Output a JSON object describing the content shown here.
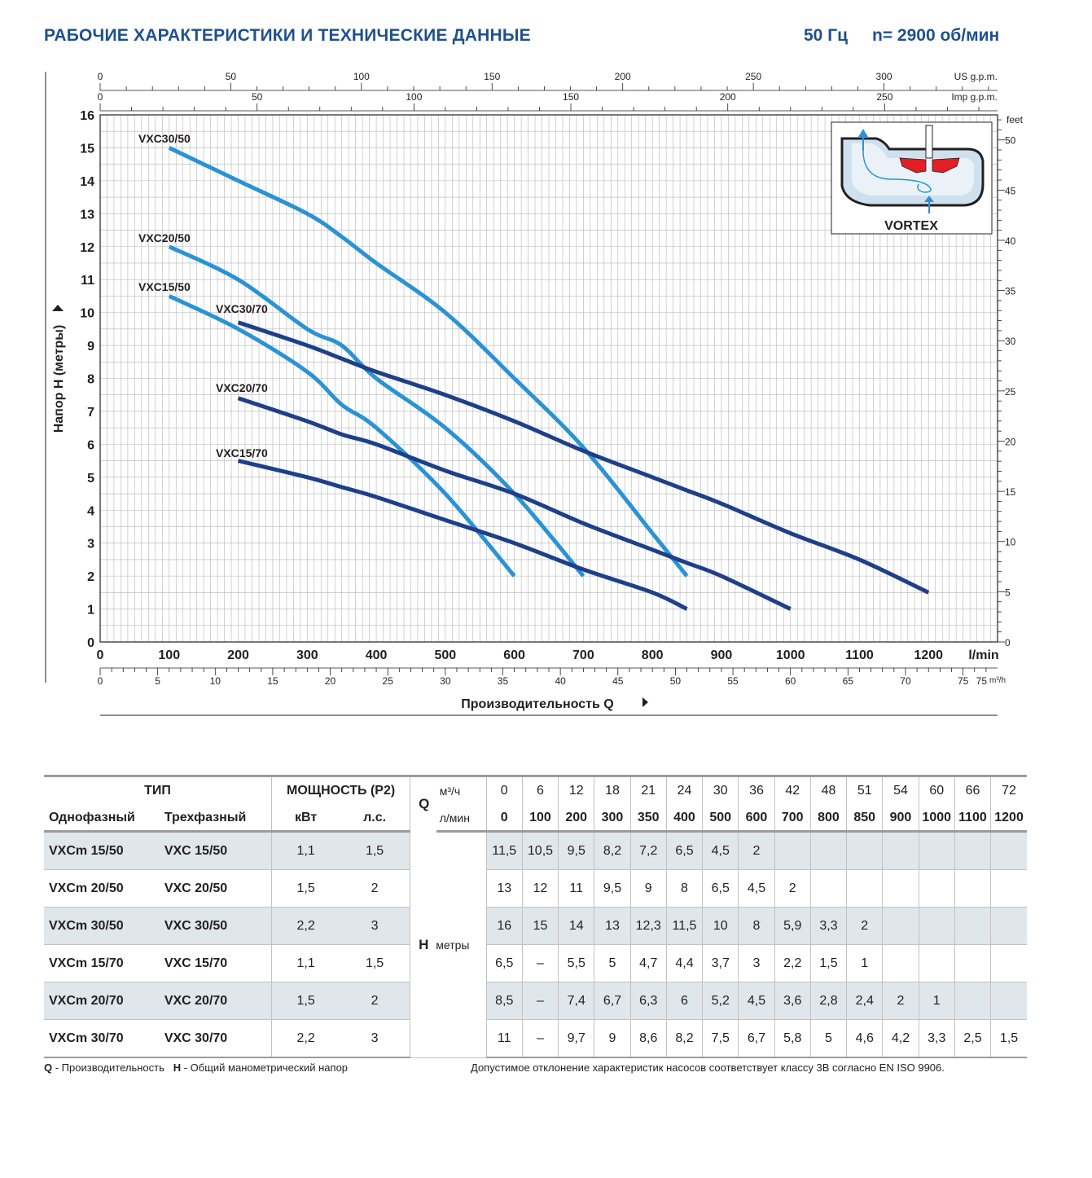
{
  "header": {
    "title": "РАБОЧИЕ ХАРАКТЕРИСТИКИ И ТЕХНИЧЕСКИЕ ДАННЫЕ",
    "frequency": "50 Гц",
    "speed": "n= 2900 об/мин"
  },
  "chart_data": {
    "type": "line",
    "xlabel": "Производительность Q",
    "ylabel": "Напор H (метры)",
    "x_unit": "l/min",
    "xlim": [
      0,
      1300
    ],
    "ylim": [
      0,
      16
    ],
    "grid": true,
    "x_ticks": [
      0,
      100,
      200,
      300,
      400,
      500,
      600,
      700,
      800,
      900,
      1000,
      1100,
      1200
    ],
    "y_ticks": [
      0,
      1,
      2,
      3,
      4,
      5,
      6,
      7,
      8,
      9,
      10,
      11,
      12,
      13,
      14,
      15,
      16
    ],
    "secondary_axes": {
      "us_gpm": {
        "unit": "US g.p.m.",
        "ticks": [
          0,
          50,
          100,
          150,
          200,
          250,
          300
        ]
      },
      "imp_gpm": {
        "unit": "Imp g.p.m.",
        "ticks": [
          0,
          50,
          100,
          150,
          200,
          250
        ]
      },
      "m3h": {
        "unit": "m³/h",
        "ticks": [
          0,
          5,
          10,
          15,
          20,
          25,
          30,
          35,
          40,
          45,
          50,
          55,
          60,
          65,
          70,
          75
        ]
      },
      "feet": {
        "unit": "feet",
        "ticks": [
          0,
          5,
          10,
          15,
          20,
          25,
          30,
          35,
          40,
          45,
          50
        ]
      }
    },
    "series": [
      {
        "name": "VXC30/50",
        "color": "#2a93d5",
        "x": [
          100,
          200,
          300,
          350,
          400,
          500,
          600,
          700,
          800,
          850
        ],
        "y": [
          15,
          14,
          13,
          12.3,
          11.5,
          10,
          8,
          5.9,
          3.3,
          2
        ]
      },
      {
        "name": "VXC20/50",
        "color": "#2a93d5",
        "x": [
          100,
          200,
          300,
          350,
          400,
          500,
          600,
          700
        ],
        "y": [
          12,
          11,
          9.5,
          9,
          8,
          6.5,
          4.5,
          2
        ]
      },
      {
        "name": "VXC15/50",
        "color": "#2a93d5",
        "x": [
          100,
          200,
          300,
          350,
          400,
          500,
          600
        ],
        "y": [
          10.5,
          9.5,
          8.2,
          7.2,
          6.5,
          4.5,
          2
        ]
      },
      {
        "name": "VXC30/70",
        "color": "#1e3f8a",
        "x": [
          200,
          300,
          350,
          400,
          500,
          600,
          700,
          800,
          850,
          900,
          1000,
          1100,
          1200
        ],
        "y": [
          9.7,
          9,
          8.6,
          8.2,
          7.5,
          6.7,
          5.8,
          5,
          4.6,
          4.2,
          3.3,
          2.5,
          1.5
        ]
      },
      {
        "name": "VXC20/70",
        "color": "#1e3f8a",
        "x": [
          200,
          300,
          350,
          400,
          500,
          600,
          700,
          800,
          850,
          900,
          1000
        ],
        "y": [
          7.4,
          6.7,
          6.3,
          6,
          5.2,
          4.5,
          3.6,
          2.8,
          2.4,
          2,
          1
        ]
      },
      {
        "name": "VXC15/70",
        "color": "#1e3f8a",
        "x": [
          200,
          300,
          350,
          400,
          500,
          600,
          700,
          800,
          850
        ],
        "y": [
          5.5,
          5,
          4.7,
          4.4,
          3.7,
          3,
          2.2,
          1.5,
          1
        ]
      }
    ],
    "inset": {
      "label": "VORTEX"
    }
  },
  "table": {
    "h_type": "ТИП",
    "h_power": "МОЩНОСТЬ (P2)",
    "h_q": "Q",
    "h_unit_m3h": "м³/ч",
    "h_unit_lmin": "л/мин",
    "h_single": "Однофазный",
    "h_three": "Трехфазный",
    "h_kw": "кВт",
    "h_hp": "л.с.",
    "h_h": "H",
    "h_h_unit": "метры",
    "flow_m3h": [
      "0",
      "6",
      "12",
      "18",
      "21",
      "24",
      "30",
      "36",
      "42",
      "48",
      "51",
      "54",
      "60",
      "66",
      "72"
    ],
    "flow_lmin": [
      "0",
      "100",
      "200",
      "300",
      "350",
      "400",
      "500",
      "600",
      "700",
      "800",
      "850",
      "900",
      "1000",
      "1100",
      "1200"
    ],
    "rows": [
      {
        "single": "VXCm 15/50",
        "three": "VXC 15/50",
        "kw": "1,1",
        "hp": "1,5",
        "h": [
          "11,5",
          "10,5",
          "9,5",
          "8,2",
          "7,2",
          "6,5",
          "4,5",
          "2",
          "",
          "",
          "",
          "",
          "",
          "",
          ""
        ]
      },
      {
        "single": "VXCm 20/50",
        "three": "VXC 20/50",
        "kw": "1,5",
        "hp": "2",
        "h": [
          "13",
          "12",
          "11",
          "9,5",
          "9",
          "8",
          "6,5",
          "4,5",
          "2",
          "",
          "",
          "",
          "",
          "",
          ""
        ]
      },
      {
        "single": "VXCm 30/50",
        "three": "VXC 30/50",
        "kw": "2,2",
        "hp": "3",
        "h": [
          "16",
          "15",
          "14",
          "13",
          "12,3",
          "11,5",
          "10",
          "8",
          "5,9",
          "3,3",
          "2",
          "",
          "",
          "",
          ""
        ]
      },
      {
        "single": "VXCm 15/70",
        "three": "VXC 15/70",
        "kw": "1,1",
        "hp": "1,5",
        "h": [
          "6,5",
          "–",
          "5,5",
          "5",
          "4,7",
          "4,4",
          "3,7",
          "3",
          "2,2",
          "1,5",
          "1",
          "",
          "",
          "",
          ""
        ]
      },
      {
        "single": "VXCm 20/70",
        "three": "VXC 20/70",
        "kw": "1,5",
        "hp": "2",
        "h": [
          "8,5",
          "–",
          "7,4",
          "6,7",
          "6,3",
          "6",
          "5,2",
          "4,5",
          "3,6",
          "2,8",
          "2,4",
          "2",
          "1",
          "",
          ""
        ]
      },
      {
        "single": "VXCm 30/70",
        "three": "VXC 30/70",
        "kw": "2,2",
        "hp": "3",
        "h": [
          "11",
          "–",
          "9,7",
          "9",
          "8,6",
          "8,2",
          "7,5",
          "6,7",
          "5,8",
          "5",
          "4,6",
          "4,2",
          "3,3",
          "2,5",
          "1,5"
        ]
      }
    ]
  },
  "footer": {
    "q_key": "Q",
    "q_text": " - Производительность",
    "h_key": "H",
    "h_text": " - Общий манометрический напор",
    "tolerance": "Допустимое отклонение характеристик насосов соответствует классу 3B согласно EN ISO 9906."
  }
}
